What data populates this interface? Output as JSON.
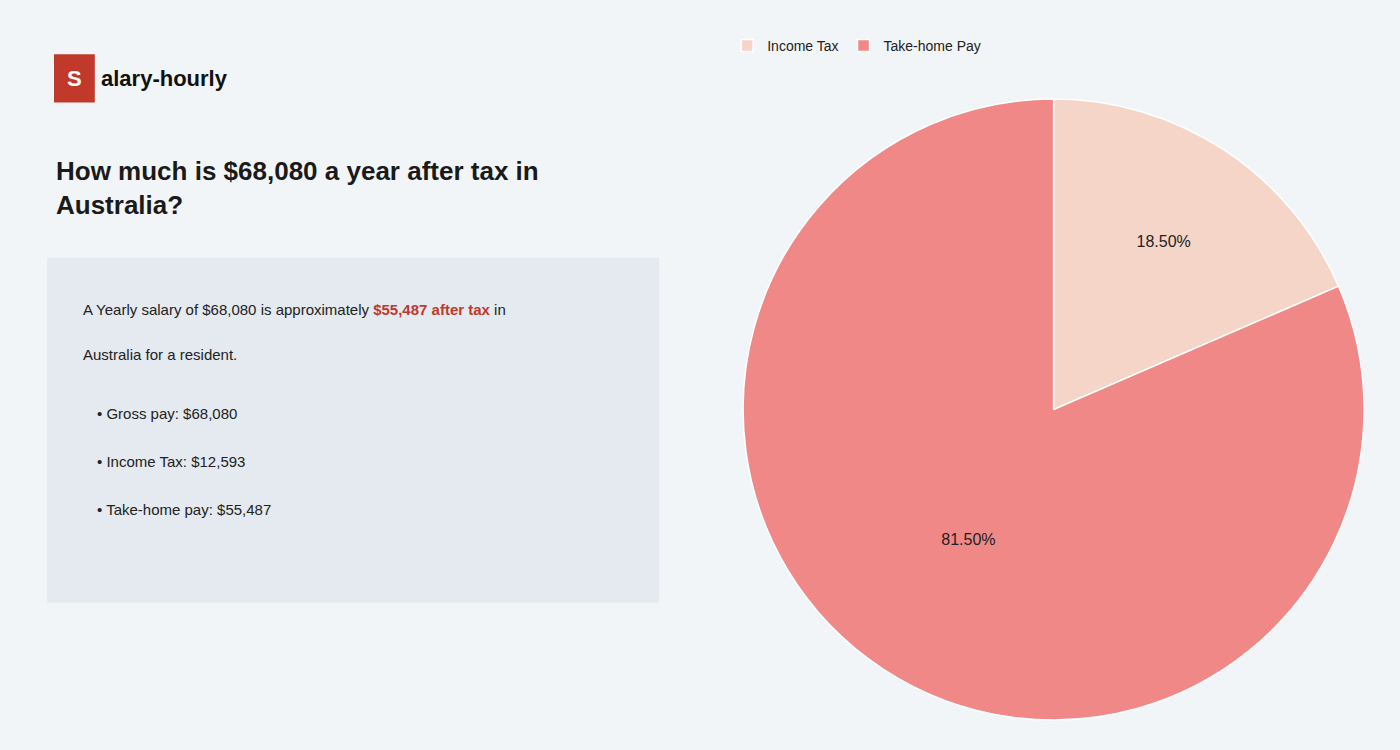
{
  "chart_data": {
    "type": "pie",
    "title": "How much is $68,080 a year after tax in\nAustralia?",
    "categories": [
      "Income Tax",
      "Take-home Pay"
    ],
    "values": [
      18.5,
      81.5
    ],
    "value_labels": [
      "18.50%",
      "81.50%"
    ],
    "data_labels": true,
    "colors": [
      "#f5d5c8",
      "#f08888"
    ],
    "legend": "upper left",
    "annotations": [
      "S",
      "alary-hourly",
      [
        {
          "text": "A Yearly salary of $68,080 is approximately "
        },
        {
          "text": "$55,487 after tax",
          "color": "#c0392b"
        },
        {
          "text": " in"
        }
      ],
      "Australia for a resident.",
      "• Gross pay: $68,080",
      "• Income Tax: $12,593",
      "• Take-home pay: $55,487"
    ]
  }
}
